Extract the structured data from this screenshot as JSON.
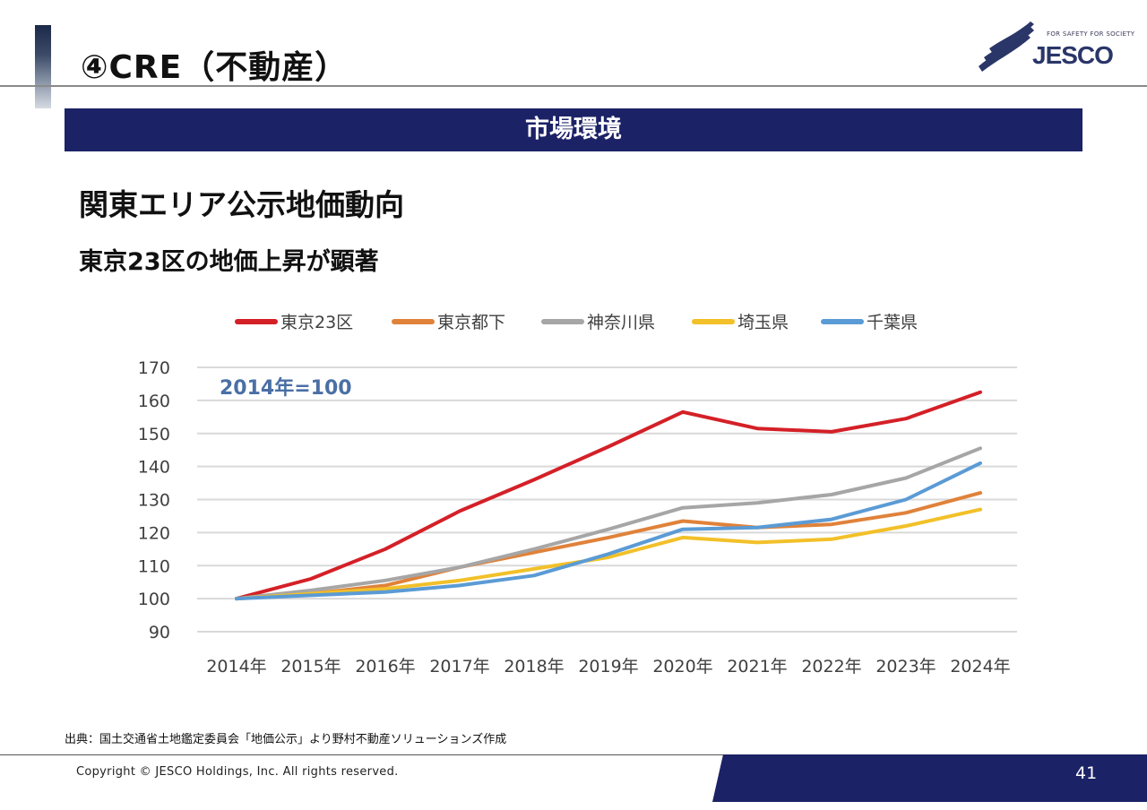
{
  "header": {
    "title": "④CRE（不動産）",
    "logo_tagline": "FOR SAFETY FOR SOCIETY",
    "logo_text": "JESCO"
  },
  "banner": {
    "label": "市場環境"
  },
  "headline": "関東エリア公示地価動向",
  "subheadline": "東京23区の地価上昇が顕著",
  "chart_data": {
    "type": "line",
    "title": "",
    "xlabel": "",
    "ylabel": "",
    "annotation": "2014年=100",
    "categories": [
      "2014年",
      "2015年",
      "2016年",
      "2017年",
      "2018年",
      "2019年",
      "2020年",
      "2021年",
      "2022年",
      "2023年",
      "2024年"
    ],
    "ylim": [
      90,
      170
    ],
    "yticks": [
      90,
      100,
      110,
      120,
      130,
      140,
      150,
      160,
      170
    ],
    "grid": true,
    "legend_position": "top",
    "series": [
      {
        "name": "東京23区",
        "color": "#d42027",
        "values": [
          100,
          106,
          115,
          126.5,
          136,
          146,
          156.5,
          151.5,
          150.5,
          154.5,
          162.5
        ]
      },
      {
        "name": "東京都下",
        "color": "#e0823a",
        "values": [
          100,
          101.5,
          104,
          109.5,
          114,
          118.5,
          123.5,
          121.5,
          122.5,
          126,
          132
        ]
      },
      {
        "name": "神奈川県",
        "color": "#a6a6a6",
        "values": [
          100,
          102.5,
          105.5,
          109.5,
          115,
          121,
          127.5,
          129,
          131.5,
          136.5,
          145.5
        ]
      },
      {
        "name": "埼玉県",
        "color": "#f2c028",
        "values": [
          100,
          101.5,
          103,
          105.5,
          109,
          112.5,
          118.5,
          117,
          118,
          122,
          127
        ]
      },
      {
        "name": "千葉県",
        "color": "#5b9bd5",
        "values": [
          100,
          101,
          102,
          104,
          107,
          113.5,
          121,
          121.5,
          124,
          130,
          141
        ]
      }
    ]
  },
  "footer": {
    "source": "出典：国土交通省土地鑑定委員会「地価公示」より野村不動産ソリューションズ作成",
    "copyright": "Copyright  ©  JESCO Holdings, Inc.  All rights reserved.",
    "page_number": "41"
  }
}
